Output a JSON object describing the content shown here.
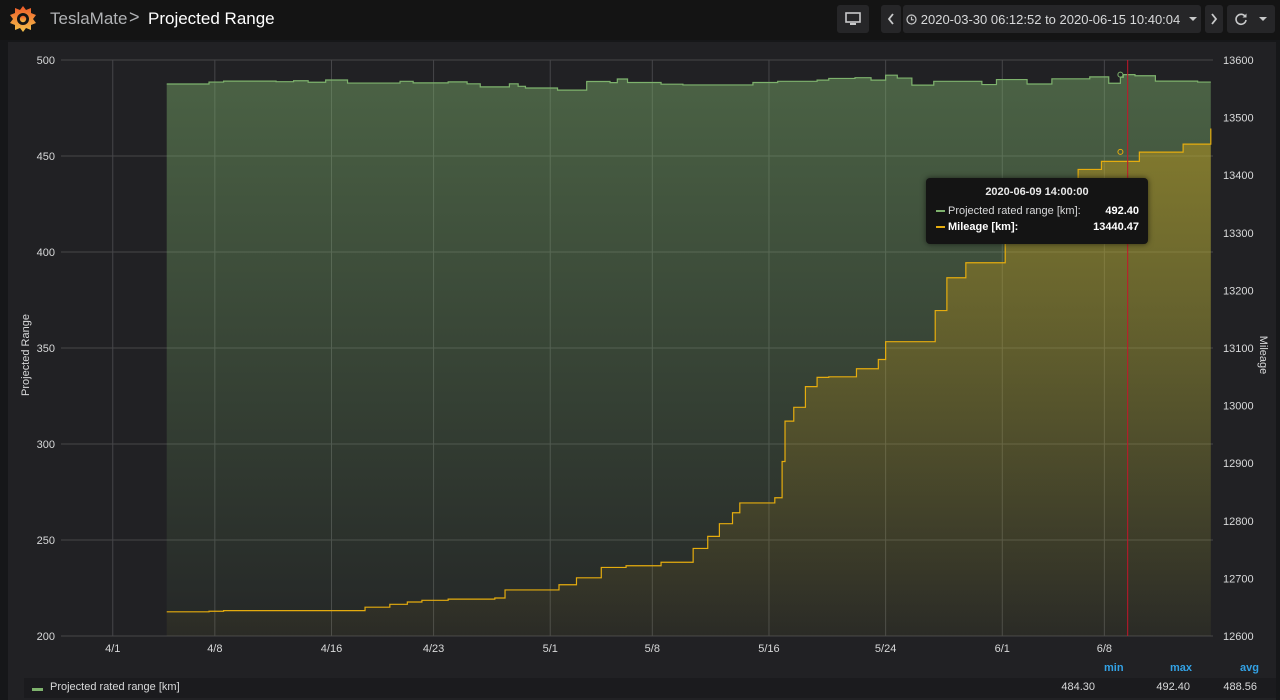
{
  "header": {
    "app": "TeslaMate",
    "separator": ">",
    "title": "Projected Range",
    "time_range": "2020-03-30 06:12:52 to 2020-06-15 10:40:04"
  },
  "colors": {
    "range": "#7eb26d",
    "mileage": "#e5ac0e",
    "cursor": "#c4162a",
    "stat_header": "#33a2e5"
  },
  "tooltip": {
    "time": "2020-06-09 14:00:00",
    "rows": [
      {
        "name": "Projected rated range [km]:",
        "value": "492.40"
      },
      {
        "name": "Mileage [km]:",
        "value": "13440.47"
      }
    ]
  },
  "legend": {
    "headers": {
      "min": "min",
      "max": "max",
      "avg": "avg"
    },
    "name": "Projected rated range [km]",
    "min": "484.30",
    "max": "492.40",
    "avg": "488.56"
  },
  "chart_data": {
    "type": "area",
    "x_ticks": [
      "4/1",
      "4/8",
      "4/16",
      "4/23",
      "5/1",
      "5/8",
      "5/16",
      "5/24",
      "6/1",
      "6/8"
    ],
    "x_tick_days": [
      0,
      7,
      15,
      22,
      30,
      37,
      45,
      53,
      61,
      68
    ],
    "x_range_days": [
      -3.55,
      75.45
    ],
    "ylabel_left": "Projected Range",
    "ylabel_right": "Mileage",
    "ylim_left": [
      200,
      500
    ],
    "ylim_right": [
      12600,
      13600
    ],
    "y_ticks_left": [
      200,
      250,
      300,
      350,
      400,
      450,
      500
    ],
    "y_ticks_right": [
      12600,
      12700,
      12800,
      12900,
      13000,
      13100,
      13200,
      13300,
      13400,
      13500,
      13600
    ],
    "cursor_day": 69.6,
    "series": [
      {
        "name": "Projected rated range [km]",
        "axis": "left",
        "x": [
          3.7,
          6.6,
          7.6,
          11.2,
          12.4,
          13.4,
          14.6,
          16.1,
          19.7,
          20.6,
          23.0,
          24.3,
          25.2,
          27.2,
          27.8,
          28.3,
          30.5,
          32.5,
          34.1,
          34.6,
          35.3,
          37.6,
          39.1,
          43.9,
          45.6,
          48.3,
          49.1,
          50.9,
          52.0,
          53.0,
          53.8,
          54.8,
          56.3,
          59.6,
          60.6,
          62.7,
          64.4,
          67.0,
          68.3,
          69.1,
          69.3,
          70.1,
          71.5,
          74.4
        ],
        "y": [
          487.5,
          488.5,
          489.0,
          488.7,
          489.2,
          488.4,
          489.6,
          488.0,
          488.9,
          488.1,
          488.6,
          487.6,
          486.0,
          487.6,
          486.3,
          485.4,
          484.3,
          488.8,
          488.2,
          490.1,
          488.3,
          487.4,
          487.0,
          488.3,
          488.9,
          489.5,
          490.4,
          490.8,
          489.5,
          492.1,
          490.6,
          486.9,
          488.9,
          487.2,
          489.8,
          487.5,
          490.2,
          491.2,
          487.9,
          491.0,
          492.4,
          491.8,
          489.0,
          488.5
        ]
      },
      {
        "name": "Mileage [km]",
        "axis": "right",
        "x": [
          3.7,
          6.6,
          7.6,
          17.3,
          19.0,
          20.2,
          21.2,
          23.0,
          26.2,
          26.9,
          30.6,
          31.8,
          33.5,
          35.2,
          37.6,
          39.8,
          40.8,
          41.6,
          42.5,
          43.0,
          45.4,
          45.9,
          46.1,
          46.7,
          47.5,
          48.3,
          49.1,
          51.0,
          52.5,
          53.0,
          56.4,
          57.2,
          58.5,
          61.2,
          62.5,
          66.2,
          67.8,
          70.4,
          73.4,
          75.3
        ],
        "y": [
          12642,
          12643,
          12644,
          12650,
          12655,
          12659,
          12662,
          12664,
          12666,
          12680,
          12689,
          12701,
          12719,
          12722,
          12728,
          12752,
          12773,
          12795,
          12814,
          12831,
          12840,
          12903,
          12973,
          12997,
          13033,
          13049,
          13050,
          13064,
          13080,
          13111,
          13165,
          13222,
          13248,
          13346,
          13360,
          13410,
          13424,
          13440,
          13454,
          13481
        ]
      }
    ]
  }
}
